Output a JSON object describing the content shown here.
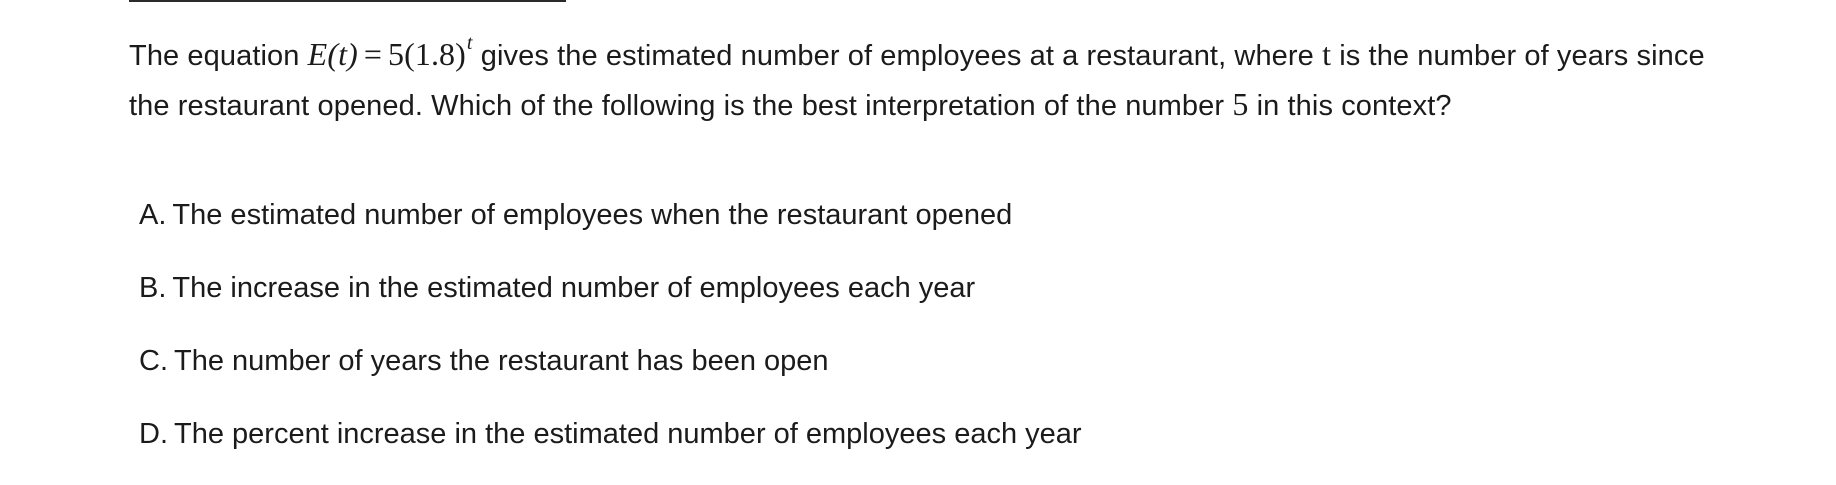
{
  "question": {
    "intro": "The equation",
    "equation": {
      "lhs": "E(t)",
      "equals": "=",
      "coefficient": "5",
      "base": "(1.8)",
      "exponent": "t"
    },
    "after_equation": "gives the estimated number of employees at a restaurant, where",
    "variable": "t",
    "after_variable": "is the number of years since the restaurant opened. Which of the following is the best interpretation of the number",
    "number": "5",
    "ending": "in this context?"
  },
  "choices": [
    {
      "letter": "A.",
      "text": "The estimated number of employees when the restaurant opened"
    },
    {
      "letter": "B.",
      "text": "The increase in the estimated number of employees each year"
    },
    {
      "letter": "C.",
      "text": "The number of years the restaurant has been open"
    },
    {
      "letter": "D.",
      "text": "The percent increase in the estimated number of employees each year"
    }
  ]
}
